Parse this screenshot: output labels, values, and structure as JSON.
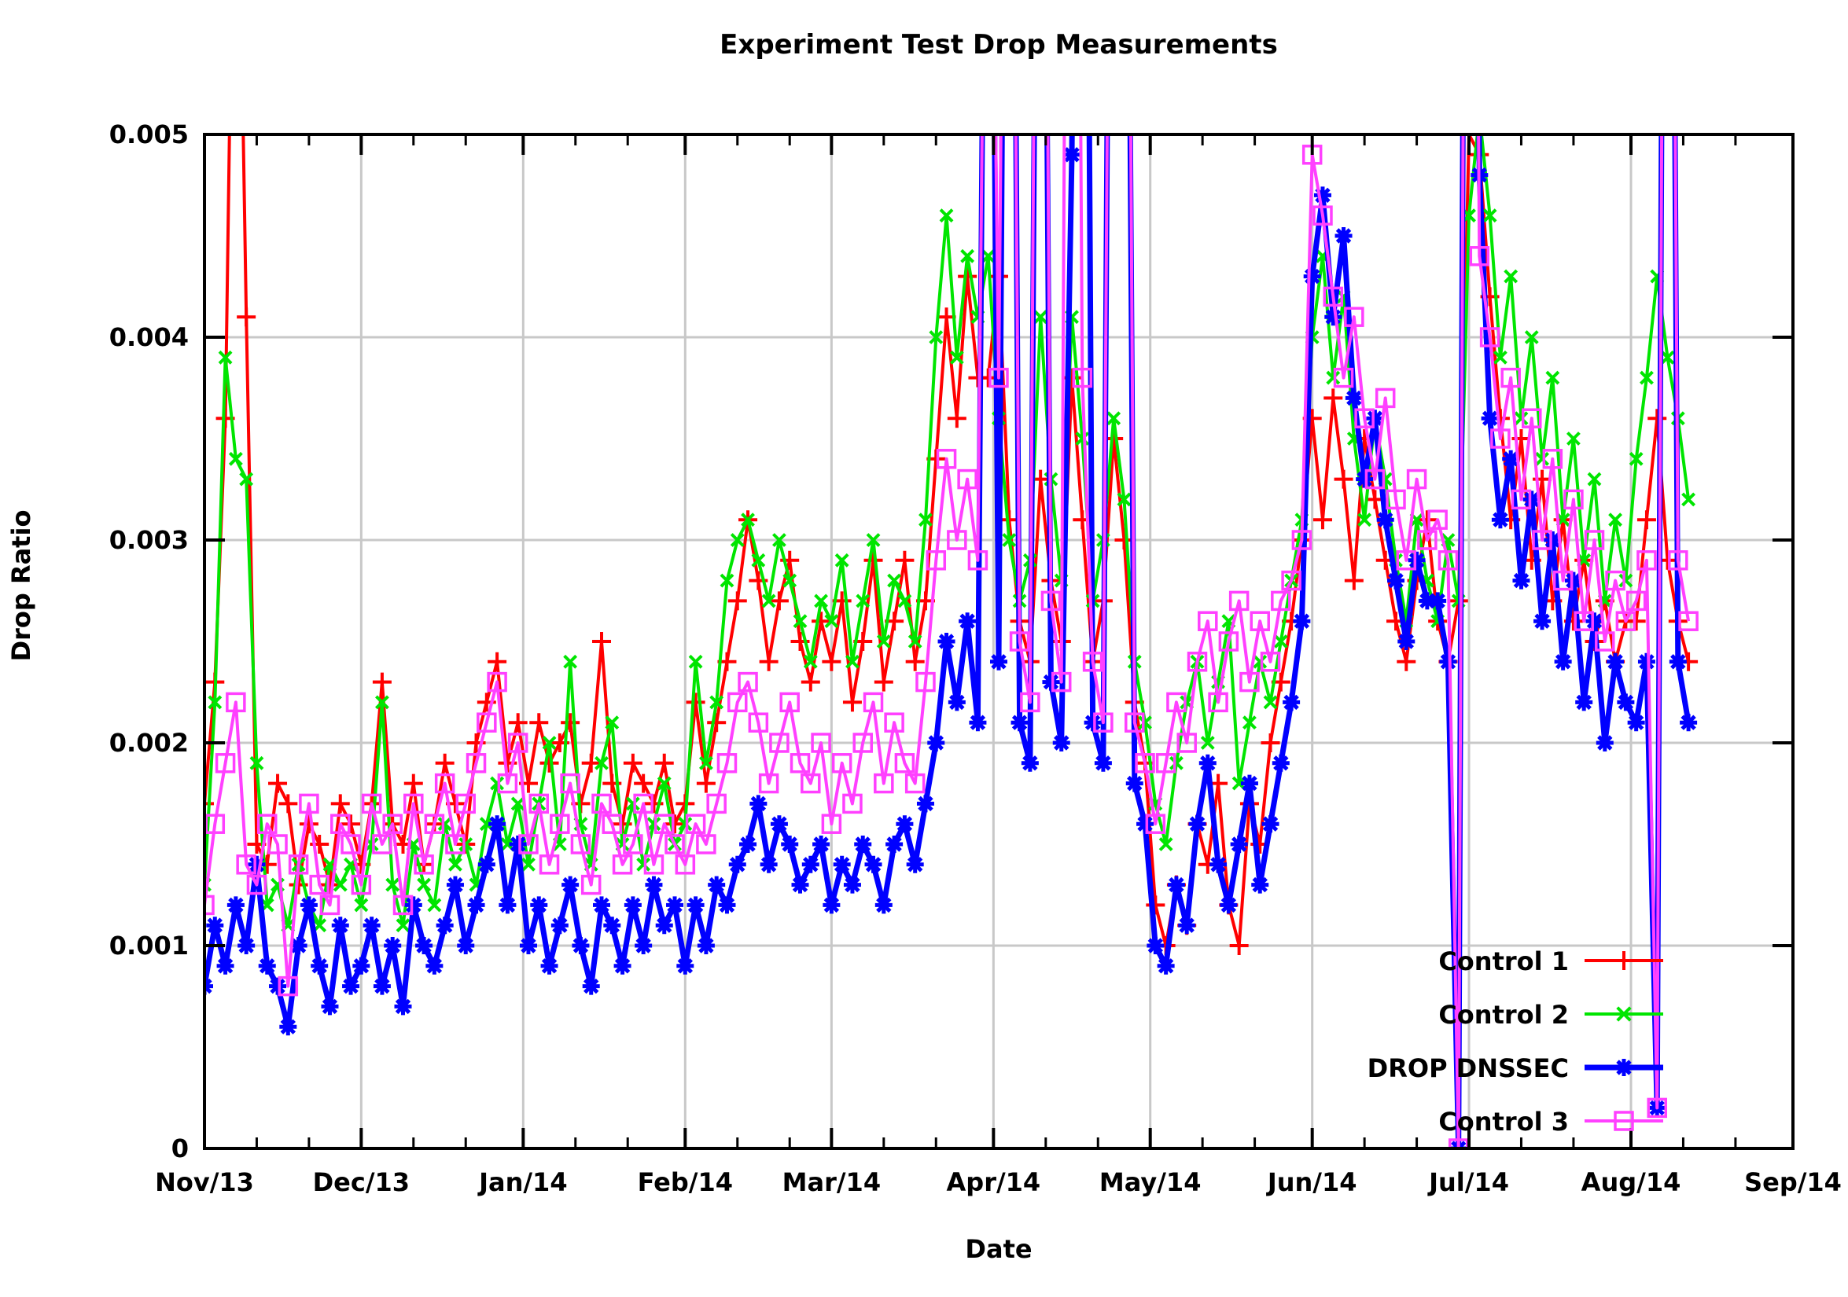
{
  "window": {
    "background": "#ffffff"
  },
  "chart_data": {
    "type": "line",
    "title": "Experiment Test Drop Measurements",
    "xlabel": "Date",
    "ylabel": "Drop Ratio",
    "ylim": [
      0,
      0.005
    ],
    "grid": true,
    "legend_position": "bottom-right-inside",
    "plot_colors": {
      "grid": "#c8c8c8",
      "border": "#000000"
    },
    "y_ticks": [
      {
        "label": "0",
        "v": 0.0
      },
      {
        "label": "0.001",
        "v": 0.001
      },
      {
        "label": "0.002",
        "v": 0.002
      },
      {
        "label": "0.003",
        "v": 0.003
      },
      {
        "label": "0.004",
        "v": 0.004
      },
      {
        "label": "0.005",
        "v": 0.005
      }
    ],
    "x_axis_months": [
      {
        "label": "Nov/13",
        "day": 0
      },
      {
        "label": "Dec/13",
        "day": 30
      },
      {
        "label": "Jan/14",
        "day": 61
      },
      {
        "label": "Feb/14",
        "day": 92
      },
      {
        "label": "Mar/14",
        "day": 120
      },
      {
        "label": "Apr/14",
        "day": 151
      },
      {
        "label": "May/14",
        "day": 181
      },
      {
        "label": "Jun/14",
        "day": 212
      },
      {
        "label": "Jul/14",
        "day": 242
      },
      {
        "label": "Aug/14",
        "day": 273
      },
      {
        "label": "Sep/14",
        "day": 304
      }
    ],
    "x_total_days": 304,
    "x_start_day": 0,
    "x_step_days": 2,
    "values_above_ylim_are_offscale_spikes": true,
    "series": [
      {
        "name": "Control 1",
        "color": "#ff0000",
        "marker": "plus",
        "line_width": 4,
        "values": [
          0.0017,
          0.0023,
          0.0036,
          0.0072,
          0.0041,
          0.0015,
          0.0014,
          0.0018,
          0.0017,
          0.0013,
          0.0016,
          0.0015,
          0.0013,
          0.0017,
          0.0016,
          0.0014,
          0.0017,
          0.0023,
          0.0016,
          0.0015,
          0.0018,
          0.0014,
          0.0016,
          0.0019,
          0.0017,
          0.0015,
          0.002,
          0.0022,
          0.0024,
          0.0019,
          0.0021,
          0.0018,
          0.0021,
          0.0019,
          0.002,
          0.0021,
          0.0017,
          0.0019,
          0.0025,
          0.0018,
          0.0016,
          0.0019,
          0.0018,
          0.0017,
          0.0019,
          0.0016,
          0.0017,
          0.0022,
          0.0018,
          0.0021,
          0.0024,
          0.0027,
          0.0031,
          0.0028,
          0.0024,
          0.0027,
          0.0029,
          0.0025,
          0.0023,
          0.0026,
          0.0024,
          0.0027,
          0.0022,
          0.0025,
          0.0029,
          0.0023,
          0.0026,
          0.0029,
          0.0024,
          0.0027,
          0.0034,
          0.0041,
          0.0036,
          0.0043,
          0.0038,
          0.0038,
          0.0043,
          0.0031,
          0.0026,
          0.0024,
          0.0033,
          0.0028,
          0.0025,
          0.0038,
          0.0031,
          0.0024,
          0.0027,
          0.0035,
          0.003,
          0.0022,
          0.0019,
          0.0012,
          0.001,
          0.0013,
          0.0011,
          0.0016,
          0.0014,
          0.0018,
          0.0012,
          0.001,
          0.0017,
          0.0015,
          0.002,
          0.0023,
          0.0026,
          0.003,
          0.0036,
          0.0031,
          0.0037,
          0.0033,
          0.0028,
          0.0035,
          0.0032,
          0.0029,
          0.0026,
          0.0024,
          0.0028,
          0.0031,
          0.0026,
          0.0024,
          0.0027,
          0.005,
          0.0049,
          0.0042,
          0.0036,
          0.0031,
          0.0035,
          0.0029,
          0.0033,
          0.0027,
          0.0031,
          0.0026,
          0.0029,
          0.0025,
          0.0027,
          0.0024,
          0.0026,
          0.0026,
          0.0031,
          0.0036,
          0.0029,
          0.0026,
          0.0024
        ]
      },
      {
        "name": "Control 2",
        "color": "#00e500",
        "marker": "cross",
        "line_width": 4,
        "values": [
          0.0013,
          0.0022,
          0.0039,
          0.0034,
          0.0033,
          0.0019,
          0.0012,
          0.0013,
          0.0011,
          0.0014,
          0.0012,
          0.0011,
          0.0014,
          0.0013,
          0.0014,
          0.0012,
          0.0015,
          0.0022,
          0.0013,
          0.0011,
          0.0015,
          0.0013,
          0.0012,
          0.0016,
          0.0014,
          0.0015,
          0.0013,
          0.0016,
          0.0018,
          0.0015,
          0.0017,
          0.0014,
          0.0017,
          0.002,
          0.0015,
          0.0024,
          0.0016,
          0.0014,
          0.0019,
          0.0021,
          0.0015,
          0.0017,
          0.0014,
          0.0016,
          0.0018,
          0.0015,
          0.0016,
          0.0024,
          0.0019,
          0.0022,
          0.0028,
          0.003,
          0.0031,
          0.0029,
          0.0027,
          0.003,
          0.0028,
          0.0026,
          0.0024,
          0.0027,
          0.0026,
          0.0029,
          0.0024,
          0.0027,
          0.003,
          0.0025,
          0.0028,
          0.0027,
          0.0025,
          0.0031,
          0.004,
          0.0046,
          0.0039,
          0.0044,
          0.0041,
          0.0044,
          0.0036,
          0.003,
          0.0027,
          0.0029,
          0.0041,
          0.0033,
          0.0028,
          0.0041,
          0.0035,
          0.0027,
          0.003,
          0.0036,
          0.0032,
          0.0024,
          0.0021,
          0.0017,
          0.0015,
          0.0019,
          0.0022,
          0.0024,
          0.002,
          0.0023,
          0.0026,
          0.0018,
          0.0021,
          0.0024,
          0.0022,
          0.0025,
          0.0028,
          0.0031,
          0.004,
          0.0044,
          0.0038,
          0.0042,
          0.0035,
          0.0031,
          0.0036,
          0.0033,
          0.0029,
          0.0026,
          0.0031,
          0.0028,
          0.0026,
          0.003,
          0.0027,
          0.0046,
          0.0051,
          0.0046,
          0.0039,
          0.0043,
          0.0036,
          0.004,
          0.0034,
          0.0038,
          0.0031,
          0.0035,
          0.0029,
          0.0033,
          0.0027,
          0.0031,
          0.0028,
          0.0034,
          0.0038,
          0.0043,
          0.0039,
          0.0036,
          0.0032
        ]
      },
      {
        "name": "DROP DNSSEC",
        "color": "#0000ff",
        "marker": "star",
        "line_width": 7,
        "values": [
          0.0008,
          0.0011,
          0.0009,
          0.0012,
          0.001,
          0.0014,
          0.0009,
          0.0008,
          0.0006,
          0.001,
          0.0012,
          0.0009,
          0.0007,
          0.0011,
          0.0008,
          0.0009,
          0.0011,
          0.0008,
          0.001,
          0.0007,
          0.0012,
          0.001,
          0.0009,
          0.0011,
          0.0013,
          0.001,
          0.0012,
          0.0014,
          0.0016,
          0.0012,
          0.0015,
          0.001,
          0.0012,
          0.0009,
          0.0011,
          0.0013,
          0.001,
          0.0008,
          0.0012,
          0.0011,
          0.0009,
          0.0012,
          0.001,
          0.0013,
          0.0011,
          0.0012,
          0.0009,
          0.0012,
          0.001,
          0.0013,
          0.0012,
          0.0014,
          0.0015,
          0.0017,
          0.0014,
          0.0016,
          0.0015,
          0.0013,
          0.0014,
          0.0015,
          0.0012,
          0.0014,
          0.0013,
          0.0015,
          0.0014,
          0.0012,
          0.0015,
          0.0016,
          0.0014,
          0.0017,
          0.002,
          0.0025,
          0.0022,
          0.0026,
          0.0021,
          0.009,
          0.0024,
          0.0105,
          0.0021,
          0.0019,
          0.0098,
          0.0023,
          0.002,
          0.0049,
          0.011,
          0.0021,
          0.0019,
          0.0102,
          0.0095,
          0.0018,
          0.0016,
          0.001,
          0.0009,
          0.0013,
          0.0011,
          0.0016,
          0.0019,
          0.0014,
          0.0012,
          0.0015,
          0.0018,
          0.0013,
          0.0016,
          0.0019,
          0.0022,
          0.0026,
          0.0043,
          0.0047,
          0.0041,
          0.0045,
          0.0037,
          0.0033,
          0.0036,
          0.0031,
          0.0028,
          0.0025,
          0.0029,
          0.0027,
          0.0027,
          0.0024,
          0.0,
          0.012,
          0.0048,
          0.0036,
          0.0031,
          0.0034,
          0.0028,
          0.0032,
          0.0026,
          0.003,
          0.0024,
          0.0028,
          0.0022,
          0.0026,
          0.002,
          0.0024,
          0.0022,
          0.0021,
          0.0024,
          0.0002,
          0.0115,
          0.0024,
          0.0021
        ]
      },
      {
        "name": "Control 3",
        "color": "#ff40ff",
        "marker": "square",
        "line_width": 4,
        "values": [
          0.0012,
          0.0016,
          0.0019,
          0.0022,
          0.0014,
          0.0013,
          0.0016,
          0.0015,
          0.0008,
          0.0014,
          0.0017,
          0.0013,
          0.0012,
          0.0016,
          0.0015,
          0.0013,
          0.0017,
          0.0015,
          0.0016,
          0.0012,
          0.0017,
          0.0014,
          0.0016,
          0.0018,
          0.0015,
          0.0017,
          0.0019,
          0.0021,
          0.0023,
          0.0018,
          0.002,
          0.0015,
          0.0017,
          0.0014,
          0.0016,
          0.0018,
          0.0015,
          0.0013,
          0.0017,
          0.0016,
          0.0014,
          0.0015,
          0.0017,
          0.0014,
          0.0016,
          0.0015,
          0.0014,
          0.0016,
          0.0015,
          0.0017,
          0.0019,
          0.0022,
          0.0023,
          0.0021,
          0.0018,
          0.002,
          0.0022,
          0.0019,
          0.0018,
          0.002,
          0.0016,
          0.0019,
          0.0017,
          0.002,
          0.0022,
          0.0018,
          0.0021,
          0.0019,
          0.0018,
          0.0023,
          0.0029,
          0.0034,
          0.003,
          0.0033,
          0.0029,
          0.008,
          0.0038,
          0.0095,
          0.0025,
          0.0022,
          0.0105,
          0.0027,
          0.0023,
          0.012,
          0.0038,
          0.0024,
          0.0021,
          0.0098,
          0.01,
          0.0021,
          0.0019,
          0.0016,
          0.0019,
          0.0022,
          0.002,
          0.0024,
          0.0026,
          0.0022,
          0.0025,
          0.0027,
          0.0023,
          0.0026,
          0.0024,
          0.0027,
          0.0028,
          0.003,
          0.0049,
          0.0046,
          0.0042,
          0.0038,
          0.0041,
          0.0036,
          0.0033,
          0.0037,
          0.0032,
          0.0029,
          0.0033,
          0.003,
          0.0031,
          0.0029,
          0.0,
          0.0115,
          0.0044,
          0.004,
          0.0035,
          0.0038,
          0.0032,
          0.0036,
          0.003,
          0.0034,
          0.0028,
          0.0032,
          0.0026,
          0.003,
          0.0025,
          0.0028,
          0.0026,
          0.0027,
          0.0029,
          0.0002,
          0.011,
          0.0029,
          0.0026
        ]
      }
    ],
    "legend_entries": [
      "Control 1",
      "Control 2",
      "DROP DNSSEC",
      "Control 3"
    ]
  }
}
